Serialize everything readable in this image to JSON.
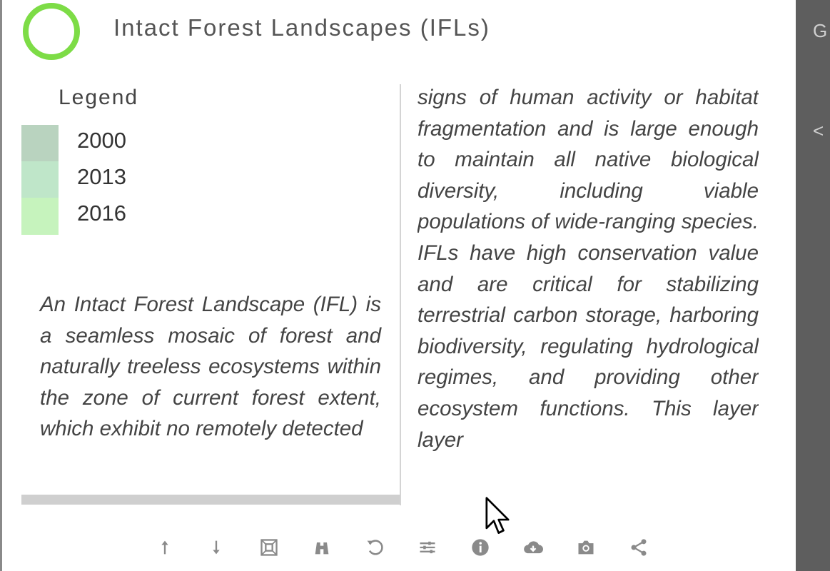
{
  "layer": {
    "title": "Intact Forest Landscapes (IFLs)",
    "toggle_color": "#7ddc46"
  },
  "legend": {
    "title": "Legend",
    "items": [
      {
        "label": "2000",
        "color": "#b9d3bf"
      },
      {
        "label": "2013",
        "color": "#bfe6c9"
      },
      {
        "label": "2016",
        "color": "#c6f3bd"
      }
    ]
  },
  "description": {
    "left": "An Intact Forest Landscape (IFL) is a seamless mosaic of forest and naturally treeless ecosystems within the zone of current forest extent, which exhibit no remotely detected",
    "right": "signs of human activity or habitat fragmentation and is large enough to maintain all native biological diversity, including viable populations of wide-ranging species. IFLs have high conservation value and are critical for stabilizing terrestrial carbon storage, harboring biodiversity, regulating hydrological regimes, and providing other ecosystem functions. This layer layer"
  },
  "toolbar": {
    "tools": [
      "move-up-icon",
      "move-down-icon",
      "zoom-to-extent-icon",
      "binoculars-icon",
      "reset-icon",
      "sliders-icon",
      "info-icon",
      "download-icon",
      "camera-icon",
      "share-icon"
    ]
  },
  "right_panel": {
    "top_glyph": "G",
    "mid_glyph": "<"
  }
}
